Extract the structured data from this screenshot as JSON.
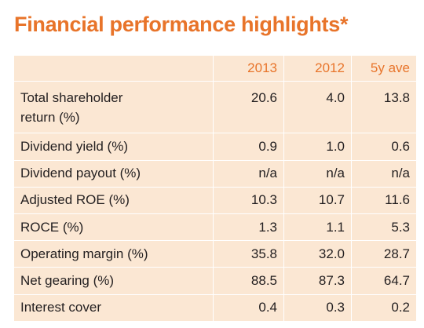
{
  "title": "Financial performance highlights*",
  "table": {
    "columns": [
      "",
      "2013",
      "2012",
      "5y ave"
    ],
    "rows": [
      {
        "label": "Total shareholder\nreturn (%)",
        "values": [
          "20.6",
          "4.0",
          "13.8"
        ]
      },
      {
        "label": "Dividend yield (%)",
        "values": [
          "0.9",
          "1.0",
          "0.6"
        ]
      },
      {
        "label": "Dividend payout (%)",
        "values": [
          "n/a",
          "n/a",
          "n/a"
        ]
      },
      {
        "label": "Adjusted ROE (%)",
        "values": [
          "10.3",
          "10.7",
          "11.6"
        ]
      },
      {
        "label": "ROCE (%)",
        "values": [
          "1.3",
          "1.1",
          "5.3"
        ]
      },
      {
        "label": "Operating margin (%)",
        "values": [
          "35.8",
          "32.0",
          "28.7"
        ]
      },
      {
        "label": "Net gearing (%)",
        "values": [
          "88.5",
          "87.3",
          "64.7"
        ]
      },
      {
        "label": "Interest cover",
        "values": [
          "0.4",
          "0.3",
          "0.2"
        ]
      }
    ]
  },
  "colors": {
    "accent": "#e8742a",
    "table_background": "#fbe7d3",
    "text": "#231f20"
  }
}
